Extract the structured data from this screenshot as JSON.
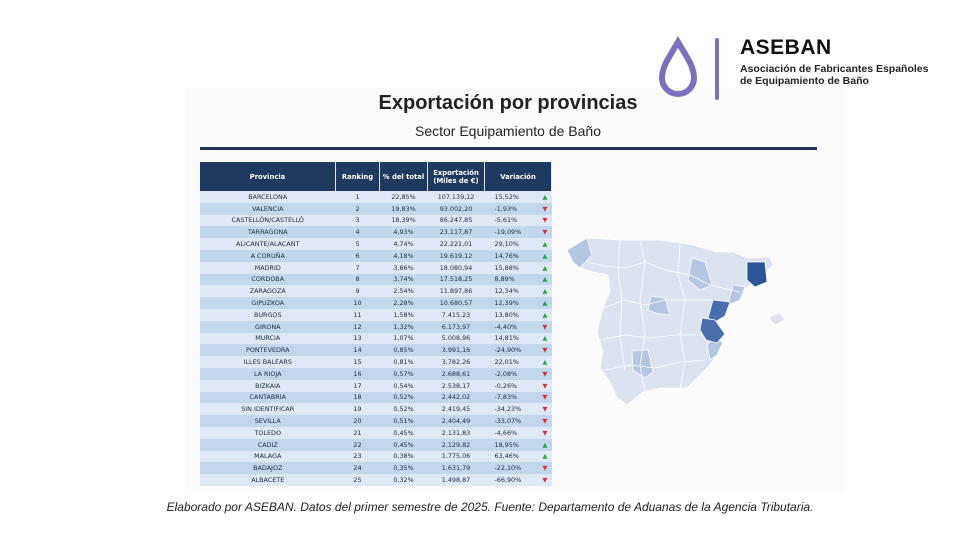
{
  "logo": {
    "name": "ASEBAN",
    "subtitle_line1": "Asociación de Fabricantes Españoles",
    "subtitle_line2": "de Equipamiento de Baño",
    "color": "#7b6fc0"
  },
  "header": {
    "title": "Exportación por provincias",
    "subtitle": "Sector Equipamiento de Baño"
  },
  "table": {
    "columns": [
      "Provincia",
      "Ranking",
      "% del total",
      "Exportación (Miles de €)",
      "Variación"
    ],
    "rows": [
      {
        "provincia": "BARCELONA",
        "ranking": "1",
        "pct": "22,85%",
        "export": "107.139,12",
        "var": "15,52%",
        "trend": "up"
      },
      {
        "provincia": "VALENCIA",
        "ranking": "2",
        "pct": "19,83%",
        "export": "93.002,20",
        "var": "-1,93%",
        "trend": "down"
      },
      {
        "provincia": "CASTELLÓN/CASTELLÓ",
        "ranking": "3",
        "pct": "18,39%",
        "export": "86.247,85",
        "var": "-5,61%",
        "trend": "down"
      },
      {
        "provincia": "TARRAGONA",
        "ranking": "4",
        "pct": "4,93%",
        "export": "23.117,87",
        "var": "-19,09%",
        "trend": "down"
      },
      {
        "provincia": "ALICANTE/ALACANT",
        "ranking": "5",
        "pct": "4,74%",
        "export": "22.221,01",
        "var": "29,10%",
        "trend": "up"
      },
      {
        "provincia": "A CORUÑA",
        "ranking": "6",
        "pct": "4,18%",
        "export": "19.619,12",
        "var": "14,76%",
        "trend": "up"
      },
      {
        "provincia": "MADRID",
        "ranking": "7",
        "pct": "3,86%",
        "export": "18.080,94",
        "var": "15,88%",
        "trend": "up"
      },
      {
        "provincia": "CORDOBA",
        "ranking": "8",
        "pct": "3,74%",
        "export": "17.518,25",
        "var": "8,89%",
        "trend": "up"
      },
      {
        "provincia": "ZARAGOZA",
        "ranking": "9",
        "pct": "2,54%",
        "export": "11.897,86",
        "var": "12,34%",
        "trend": "up"
      },
      {
        "provincia": "GIPUZKOA",
        "ranking": "10",
        "pct": "2,28%",
        "export": "10.680,57",
        "var": "12,39%",
        "trend": "up"
      },
      {
        "provincia": "BURGOS",
        "ranking": "11",
        "pct": "1,58%",
        "export": "7.415,23",
        "var": "13,80%",
        "trend": "up"
      },
      {
        "provincia": "GIRONA",
        "ranking": "12",
        "pct": "1,32%",
        "export": "6.173,97",
        "var": "-4,40%",
        "trend": "down"
      },
      {
        "provincia": "MURCIA",
        "ranking": "13",
        "pct": "1,07%",
        "export": "5.008,96",
        "var": "14,81%",
        "trend": "up"
      },
      {
        "provincia": "PONTEVEDRA",
        "ranking": "14",
        "pct": "0,85%",
        "export": "3.991,16",
        "var": "-24,90%",
        "trend": "down"
      },
      {
        "provincia": "ILLES BALEARS",
        "ranking": "15",
        "pct": "0,81%",
        "export": "3.782,26",
        "var": "22,01%",
        "trend": "up"
      },
      {
        "provincia": "LA RIOJA",
        "ranking": "16",
        "pct": "0,57%",
        "export": "2.688,61",
        "var": "-2,08%",
        "trend": "down"
      },
      {
        "provincia": "BIZKAIA",
        "ranking": "17",
        "pct": "0,54%",
        "export": "2.538,17",
        "var": "-0,26%",
        "trend": "down"
      },
      {
        "provincia": "CANTABRIA",
        "ranking": "18",
        "pct": "0,52%",
        "export": "2.442,02",
        "var": "-7,83%",
        "trend": "down"
      },
      {
        "provincia": "SIN IDENTIFICAR",
        "ranking": "19",
        "pct": "0,52%",
        "export": "2.419,45",
        "var": "-34,23%",
        "trend": "down"
      },
      {
        "provincia": "SEVILLA",
        "ranking": "20",
        "pct": "0,51%",
        "export": "2.404,49",
        "var": "-33,07%",
        "trend": "down"
      },
      {
        "provincia": "TOLEDO",
        "ranking": "21",
        "pct": "0,45%",
        "export": "2.131,83",
        "var": "-4,66%",
        "trend": "down"
      },
      {
        "provincia": "CADIZ",
        "ranking": "22",
        "pct": "0,45%",
        "export": "2.129,82",
        "var": "18,95%",
        "trend": "up"
      },
      {
        "provincia": "MALAGA",
        "ranking": "23",
        "pct": "0,38%",
        "export": "1.775,06",
        "var": "63,46%",
        "trend": "up"
      },
      {
        "provincia": "BADAJOZ",
        "ranking": "24",
        "pct": "0,35%",
        "export": "1.631,79",
        "var": "-22,10%",
        "trend": "down"
      },
      {
        "provincia": "ALBACETE",
        "ranking": "25",
        "pct": "0,32%",
        "export": "1.498,87",
        "var": "-66,90%",
        "trend": "down"
      }
    ]
  },
  "map": {
    "base_color": "#dbe3f1",
    "highlight_dark": "#2a5597",
    "highlight_mid": "#4a6fae",
    "highlight_light": "#b4c6e2",
    "highlighted": [
      "BARCELONA",
      "VALENCIA",
      "CASTELLÓN/CASTELLÓ",
      "MADRID",
      "CORDOBA",
      "ZARAGOZA",
      "TARRAGONA",
      "ALICANTE/ALACANT"
    ]
  },
  "footer": {
    "text": "Elaborado por ASEBAN. Datos del primer semestre de 2025. Fuente: Departamento de Aduanas de la Agencia Tributaria."
  }
}
